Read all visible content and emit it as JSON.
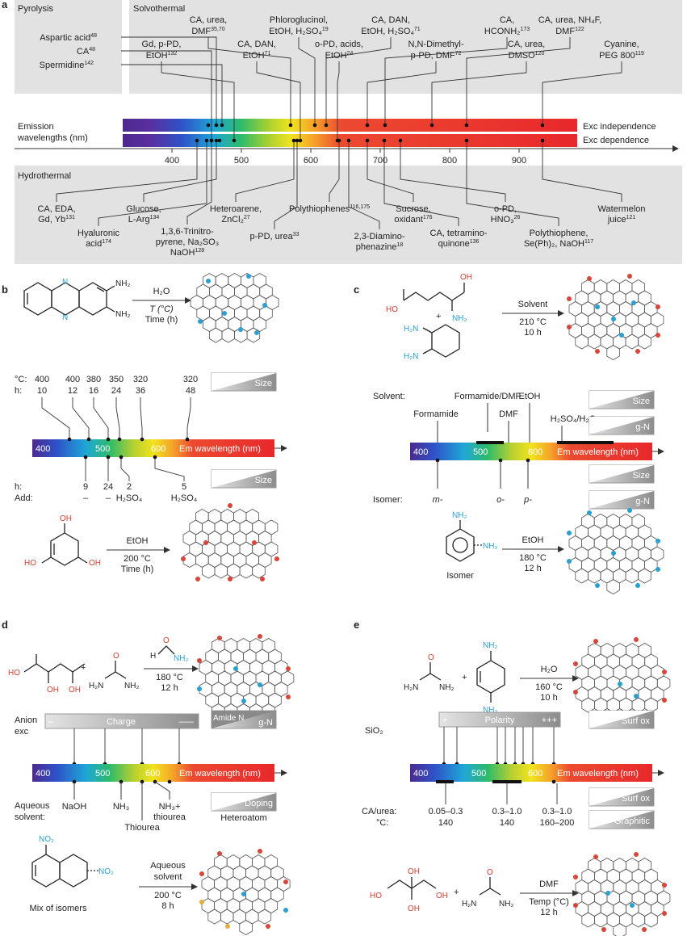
{
  "panel_a": {
    "label": "a",
    "section_pyrolysis": "Pyrolysis",
    "section_solvothermal": "Solvothermal",
    "section_hydrothermal": "Hydrothermal",
    "emission_label_1": "Emission",
    "emission_label_2": "wavelengths (nm)",
    "ticks": [
      "400",
      "500",
      "600",
      "700",
      "800",
      "900"
    ],
    "exc_independence": "Exc independence",
    "exc_dependence": "Exc dependence",
    "pyro": [
      {
        "text": "Aspartic acid",
        "sup": "48"
      },
      {
        "text": "CA",
        "sup": "48"
      },
      {
        "text": "Spermidine",
        "sup": "142"
      }
    ],
    "solvo": [
      {
        "l1": "Gd, p-PD,",
        "l2": "EtOH",
        "sup": "132"
      },
      {
        "l1": "CA, urea,",
        "l2": "DMF",
        "sup": "35,70"
      },
      {
        "l1": "CA, DAN,",
        "l2": "EtOH",
        "sup": "71"
      },
      {
        "l1": "Phloroglucinol,",
        "l2": "EtOH, H₂SO₄",
        "sup": "19"
      },
      {
        "l1": "o-PD, acids,",
        "l2": "EtOH",
        "sup": "24"
      },
      {
        "l1": "CA, DAN,",
        "l2": "EtOH, H₂SO₄",
        "sup": "71"
      },
      {
        "l1": "N,N-Dimethyl-",
        "l2": "p-PD, DMF",
        "sup": "72"
      },
      {
        "l1": "CA,",
        "l2": "HCONH₂",
        "sup": "173"
      },
      {
        "l1": "CA, urea,",
        "l2": "DMSO",
        "sup": "120"
      },
      {
        "l1": "CA, urea, NH₄F,",
        "l2": "DMF",
        "sup": "122"
      },
      {
        "l1": "Cyanine,",
        "l2": "PEG 800",
        "sup": "119"
      }
    ],
    "hydro": [
      {
        "l1": "CA, EDA,",
        "l2": "Gd, Yb",
        "sup": "131"
      },
      {
        "l1": "Hyaluronic",
        "l2": "acid",
        "sup": "174"
      },
      {
        "l1": "Glucose,",
        "l2": "L-Arg",
        "sup": "134"
      },
      {
        "l1": "1,3,6-Trinitro-",
        "l2": "pyrene, Na₂SO₃",
        "l3": "NaOH",
        "sup": "128"
      },
      {
        "l1": "Heteroarene,",
        "l2": "ZnCl₂",
        "sup": "27"
      },
      {
        "l1": "p-PD, urea",
        "sup": "33"
      },
      {
        "l1": "Polythiophenes",
        "sup": "116,175"
      },
      {
        "l1": "2,3-Diamino-",
        "l2": "phenazine",
        "sup": "18"
      },
      {
        "l1": "Sucrose,",
        "l2": "oxidant",
        "sup": "176"
      },
      {
        "l1": "CA, tetramino-",
        "l2": "quinone",
        "sup": "136"
      },
      {
        "l1": "o-PD,",
        "l2": "HNO₃",
        "sup": "26"
      },
      {
        "l1": "Polythiophene,",
        "l2": "Se(Ph)₂, NaOH",
        "sup": "117"
      },
      {
        "l1": "Watermelon",
        "l2": "juice",
        "sup": "121"
      }
    ]
  },
  "panel_b": {
    "label": "b",
    "reagent": "H₂O",
    "cond1": "T (°C)",
    "cond2": "Time (h)",
    "row_c_label": "°C:",
    "row_h_label": "h:",
    "temps": [
      "400",
      "400",
      "380",
      "350",
      "320",
      "320"
    ],
    "hours": [
      "10",
      "12",
      "16",
      "24",
      "36",
      "48"
    ],
    "size": "Size",
    "bar_400": "400",
    "bar_500": "500",
    "bar_600": "600",
    "bar_em": "Em wavelength (nm)",
    "h_label2": "h:",
    "add_label": "Add:",
    "h2": [
      "9",
      "24",
      "2",
      "5"
    ],
    "add2": [
      "–",
      "–",
      "H₂SO₄",
      "H₂SO₄"
    ],
    "reagent2": "EtOH",
    "cond3": "200 °C",
    "cond4": "Time (h)"
  },
  "panel_c": {
    "label": "c",
    "plus": "+",
    "reagent": "Solvent",
    "cond1": "210 °C",
    "cond2": "10 h",
    "solvent_label": "Solvent:",
    "solvents": [
      "Formamide",
      "Formamide/DMF",
      "DMF",
      "EtOH",
      "H₂SO₄/H₂O"
    ],
    "size": "Size",
    "gn": "g-N",
    "bar_400": "400",
    "bar_500": "500",
    "bar_600": "600",
    "bar_em": "Em wavelength (nm)",
    "isomer_label": "Isomer:",
    "isomers": [
      "m-",
      "o-",
      "p-"
    ],
    "isomer_caption": "Isomer",
    "reagent2": "EtOH",
    "cond3": "180 °C",
    "cond4": "12 h"
  },
  "panel_d": {
    "label": "d",
    "plus": "+",
    "cond1": "180 °C",
    "cond2": "12 h",
    "anion_1": "Anion",
    "anion_2": "exc",
    "charge": "Charge",
    "minus1": "–",
    "minus3": "–––",
    "amide_n": "Amide N",
    "gn": "g-N",
    "bar_400": "400",
    "bar_500": "500",
    "bar_600": "600",
    "bar_em": "Em wavelength (nm)",
    "aq_1": "Aqueous",
    "aq_2": "solvent:",
    "solvents": [
      "NaOH",
      "NH₃",
      "Thiourea",
      "NH₃+",
      "thiourea"
    ],
    "doping": "Doping",
    "heteroatom": "Heteroatom",
    "reagent2_1": "Aqueous",
    "reagent2_2": "solvent",
    "cond3": "200 °C",
    "cond4": "8 h",
    "mix": "Mix of isomers"
  },
  "panel_e": {
    "label": "e",
    "plus": "+",
    "reagent": "H₂O",
    "cond1": "160 °C",
    "cond2": "10 h",
    "sio2": "SiO₂",
    "polarity": "Polarity",
    "pplus": "+",
    "pplus3": "+++",
    "surf_ox": "Surf ox",
    "bar_400": "400",
    "bar_500": "500",
    "bar_600": "600",
    "bar_em": "Em wavelength (nm)",
    "graphitic": "Graphitic",
    "ca_urea": "CA/urea:",
    "deg": "°C:",
    "ratios": [
      "0.05–0.3",
      "0.3–1.0",
      "0.3–1.0"
    ],
    "temps": [
      "140",
      "140",
      "160–200"
    ],
    "reagent2": "DMF",
    "cond3": "Temp (°C)",
    "cond4": "12 h"
  }
}
